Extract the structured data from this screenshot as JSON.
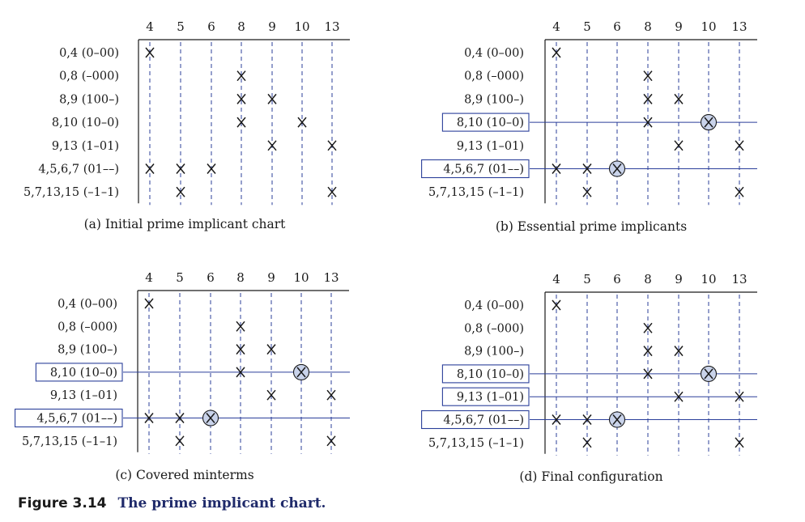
{
  "figure": {
    "label": "Figure 3.14",
    "title": "The prime implicant chart."
  },
  "minterms": [
    "4",
    "5",
    "6",
    "8",
    "9",
    "10",
    "13"
  ],
  "implicants": [
    "0,4 (0–00)",
    "0,8 (–000)",
    "8,9 (100–)",
    "8,10 (10–0)",
    "9,13 (1–01)",
    "4,5,6,7 (01––)",
    "5,7,13,15 (–1–1)"
  ],
  "coverage": [
    [
      0
    ],
    [
      3
    ],
    [
      3,
      4
    ],
    [
      3,
      5
    ],
    [
      4,
      6
    ],
    [
      0,
      1,
      2
    ],
    [
      1,
      6
    ]
  ],
  "colors": {
    "ink": "#1a1a1a",
    "dashed_column": "#2b3f9a",
    "row_line": "#2b3f9a",
    "box": "#2b3f9a",
    "circle_fill": "#c9d3ea",
    "title_accent": "#1f2a6a"
  },
  "panels": [
    {
      "caption": "(a) Initial prime implicant chart",
      "boxed_rows": [],
      "lined_rows": [],
      "circled": []
    },
    {
      "caption": "(b) Essential prime implicants",
      "boxed_rows": [
        3,
        5
      ],
      "lined_rows": [
        3,
        5
      ],
      "circled": [
        [
          3,
          5
        ],
        [
          5,
          2
        ]
      ]
    },
    {
      "caption": "(c) Covered minterms",
      "boxed_rows": [
        3,
        5
      ],
      "lined_rows": [
        3,
        5
      ],
      "circled": [
        [
          3,
          5
        ],
        [
          5,
          2
        ]
      ]
    },
    {
      "caption": "(d) Final configuration",
      "boxed_rows": [
        3,
        4,
        5
      ],
      "lined_rows": [
        3,
        4,
        5
      ],
      "circled": [
        [
          3,
          5
        ],
        [
          5,
          2
        ]
      ]
    }
  ]
}
